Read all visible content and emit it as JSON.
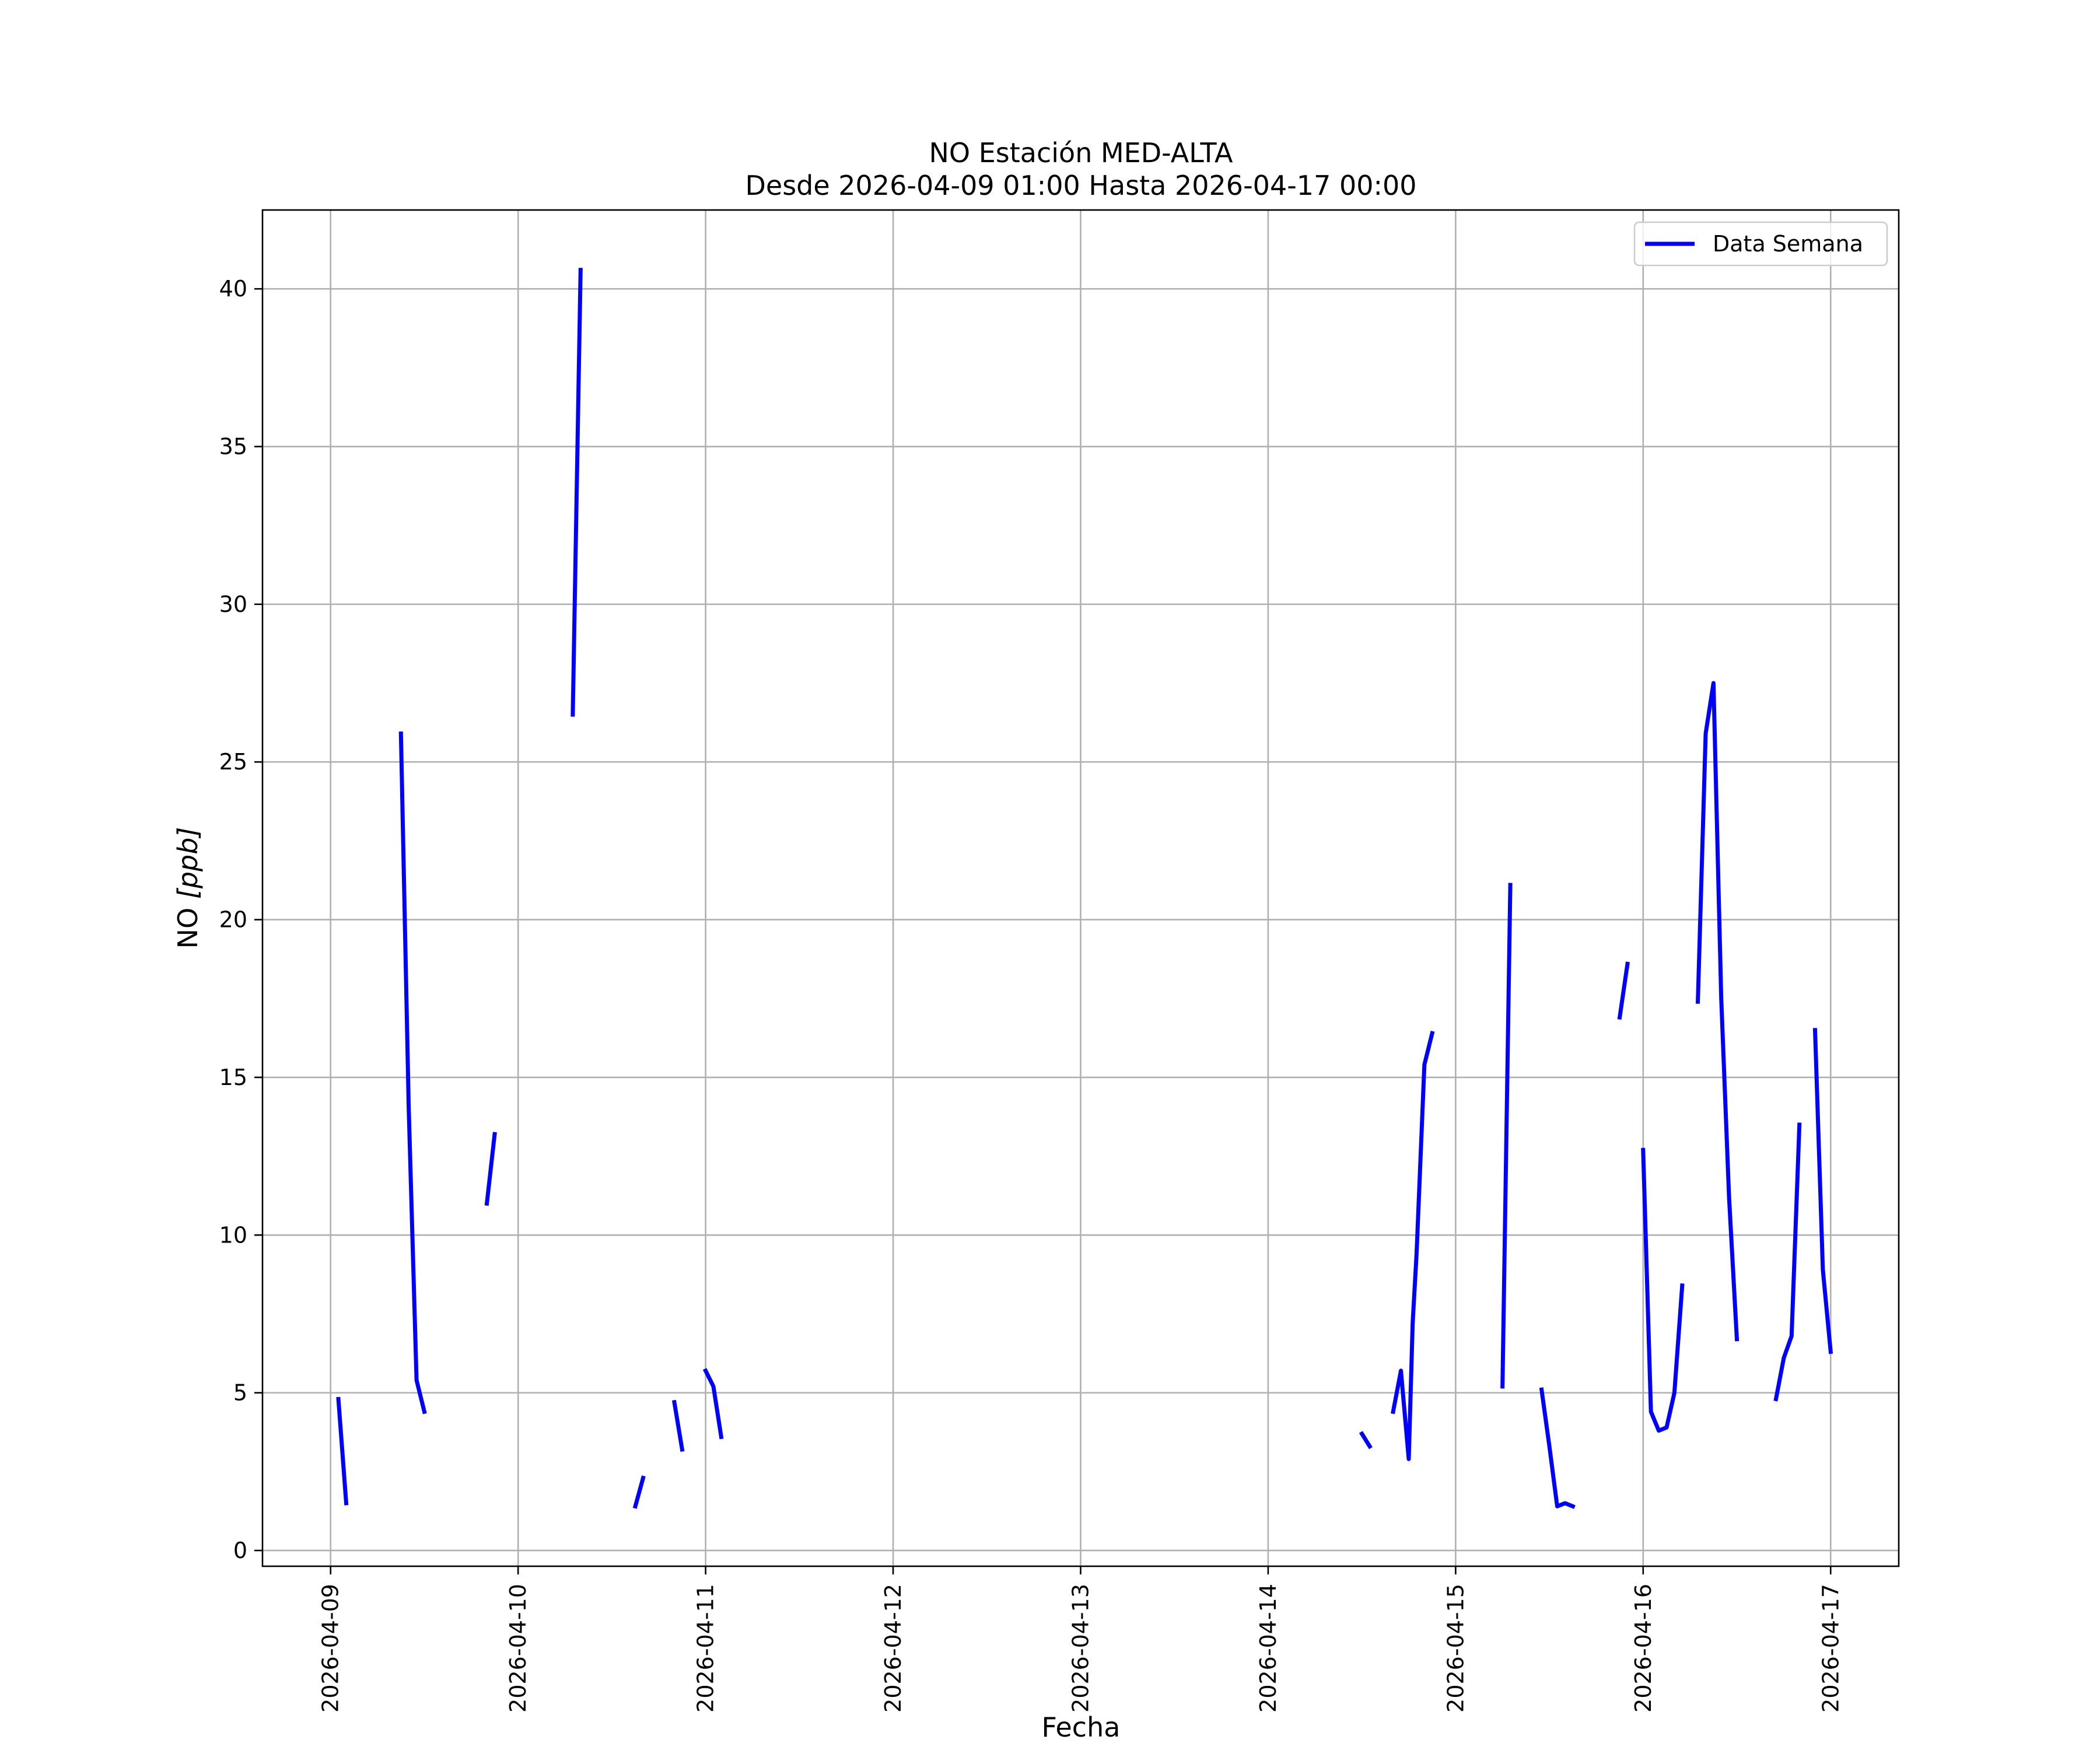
{
  "chart_data": {
    "type": "line",
    "title": "NO Estación MED-ALTA",
    "subtitle": "Desde 2026-04-09 01:00 Hasta 2026-04-17 00:00",
    "xlabel": "Fecha",
    "ylabel_text": "NO ",
    "ylabel_unit": "[ppb]",
    "x_type": "datetime",
    "xlim": [
      "2026-04-08 15:17",
      "2026-04-17 08:43"
    ],
    "ylim": [
      -0.5,
      42.5
    ],
    "x_ticks": [
      "2026-04-09",
      "2026-04-10",
      "2026-04-11",
      "2026-04-12",
      "2026-04-13",
      "2026-04-14",
      "2026-04-15",
      "2026-04-16",
      "2026-04-17"
    ],
    "y_ticks": [
      0,
      5,
      10,
      15,
      20,
      25,
      30,
      35,
      40
    ],
    "y_tick_labels": [
      "0",
      "5",
      "10",
      "15",
      "20",
      "25",
      "30",
      "35",
      "40"
    ],
    "grid": true,
    "legend": {
      "position": "top-right",
      "entries": [
        "Data Semana"
      ]
    },
    "series": [
      {
        "name": "Data Semana",
        "color": "#0000ff",
        "segments": [
          [
            [
              "2026-04-09 01:00",
              4.8
            ],
            [
              "2026-04-09 02:00",
              1.5
            ]
          ],
          [
            [
              "2026-04-09 09:00",
              25.9
            ],
            [
              "2026-04-09 10:00",
              14.0
            ],
            [
              "2026-04-09 11:00",
              5.4
            ],
            [
              "2026-04-09 12:00",
              4.4
            ]
          ],
          [
            [
              "2026-04-09 20:00",
              11.0
            ],
            [
              "2026-04-09 21:00",
              13.2
            ]
          ],
          [
            [
              "2026-04-10 07:00",
              26.5
            ],
            [
              "2026-04-10 08:00",
              40.6
            ]
          ],
          [
            [
              "2026-04-10 15:00",
              1.4
            ],
            [
              "2026-04-10 16:00",
              2.3
            ]
          ],
          [
            [
              "2026-04-10 20:00",
              4.7
            ],
            [
              "2026-04-10 21:00",
              3.2
            ]
          ],
          [
            [
              "2026-04-11 00:00",
              5.7
            ],
            [
              "2026-04-11 01:00",
              5.2
            ],
            [
              "2026-04-11 02:00",
              3.6
            ]
          ],
          [
            [
              "2026-04-14 12:00",
              3.7
            ],
            [
              "2026-04-14 13:00",
              3.3
            ]
          ],
          [
            [
              "2026-04-14 16:00",
              4.4
            ],
            [
              "2026-04-14 17:00",
              5.7
            ],
            [
              "2026-04-14 18:00",
              2.9
            ],
            [
              "2026-04-14 18:30",
              7.2
            ],
            [
              "2026-04-14 19:00",
              9.4
            ],
            [
              "2026-04-14 20:00",
              15.4
            ],
            [
              "2026-04-14 21:00",
              16.4
            ]
          ],
          [
            [
              "2026-04-15 06:00",
              5.2
            ],
            [
              "2026-04-15 07:00",
              21.1
            ]
          ],
          [
            [
              "2026-04-15 11:00",
              5.1
            ],
            [
              "2026-04-15 12:00",
              3.3
            ],
            [
              "2026-04-15 13:00",
              1.4
            ],
            [
              "2026-04-15 14:00",
              1.5
            ],
            [
              "2026-04-15 15:00",
              1.4
            ]
          ],
          [
            [
              "2026-04-15 21:00",
              16.9
            ],
            [
              "2026-04-15 22:00",
              18.6
            ]
          ],
          [
            [
              "2026-04-16 00:00",
              12.7
            ],
            [
              "2026-04-16 01:00",
              4.4
            ],
            [
              "2026-04-16 02:00",
              3.8
            ],
            [
              "2026-04-16 03:00",
              3.9
            ],
            [
              "2026-04-16 04:00",
              5.0
            ],
            [
              "2026-04-16 05:00",
              8.4
            ]
          ],
          [
            [
              "2026-04-16 07:00",
              17.4
            ],
            [
              "2026-04-16 08:00",
              25.9
            ],
            [
              "2026-04-16 09:00",
              27.5
            ],
            [
              "2026-04-16 10:00",
              17.5
            ],
            [
              "2026-04-16 11:00",
              11.2
            ],
            [
              "2026-04-16 12:00",
              6.7
            ]
          ],
          [
            [
              "2026-04-16 17:00",
              4.8
            ],
            [
              "2026-04-16 18:00",
              6.1
            ],
            [
              "2026-04-16 19:00",
              6.8
            ],
            [
              "2026-04-16 20:00",
              13.5
            ]
          ],
          [
            [
              "2026-04-16 22:00",
              16.5
            ],
            [
              "2026-04-16 23:00",
              8.9
            ],
            [
              "2026-04-17 00:00",
              6.3
            ]
          ]
        ]
      }
    ]
  }
}
